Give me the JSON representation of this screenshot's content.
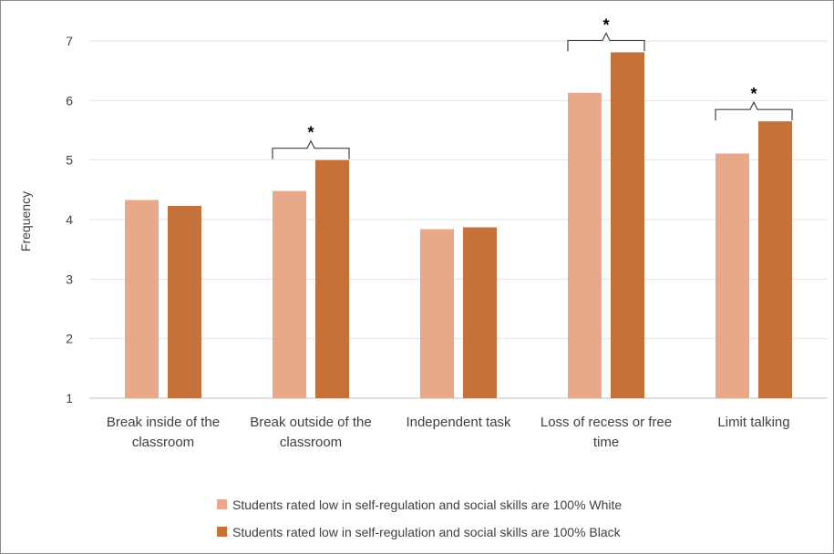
{
  "chart_data": {
    "type": "bar",
    "title": "",
    "xlabel": "",
    "ylabel": "Frequency",
    "ylim": [
      1,
      7
    ],
    "yticks": [
      1,
      2,
      3,
      4,
      5,
      6,
      7
    ],
    "grid": true,
    "legend_position": "bottom",
    "categories": [
      [
        "Break inside of the",
        "classroom"
      ],
      [
        "Break outside of the",
        "classroom"
      ],
      [
        "Independent task"
      ],
      [
        "Loss of recess or free",
        "time"
      ],
      [
        "Limit talking"
      ]
    ],
    "series": [
      {
        "name": "Students rated low in self-regulation and social skills are 100% White",
        "color": "#e8a98a",
        "values": [
          4.33,
          4.48,
          3.84,
          6.13,
          5.11
        ]
      },
      {
        "name": "Students rated low in self-regulation and social skills are 100% Black",
        "color": "#c6703a",
        "values": [
          4.23,
          5.0,
          3.87,
          6.81,
          5.65
        ]
      }
    ],
    "significance": [
      {
        "category_index": 1,
        "label": "*"
      },
      {
        "category_index": 3,
        "label": "*"
      },
      {
        "category_index": 4,
        "label": "*"
      }
    ]
  }
}
